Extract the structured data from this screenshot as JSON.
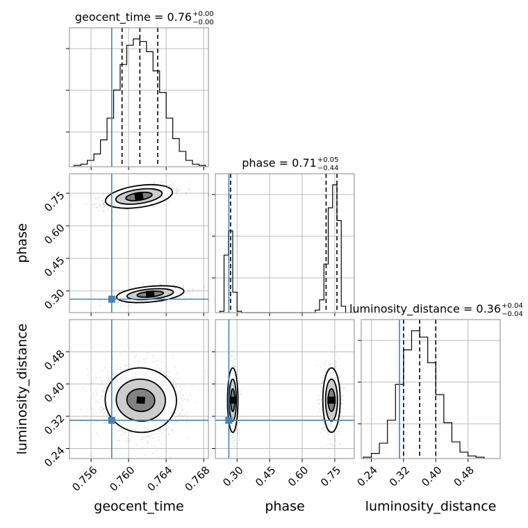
{
  "chart_data": {
    "type": "corner",
    "parameters": [
      "geocent_time",
      "phase",
      "luminosity_distance"
    ],
    "truth_color": "#4682b4",
    "truths": {
      "geocent_time": 0.7582,
      "phase": 0.262,
      "luminosity_distance": 0.31
    },
    "titles": [
      {
        "param": "geocent_time",
        "prefix": "geocent_time = 0.76",
        "upper": "+0.00",
        "lower": "−0.00"
      },
      {
        "param": "phase",
        "prefix": "phase = 0.71",
        "upper": "+0.05",
        "lower": "−0.44"
      },
      {
        "param": "luminosity_distance",
        "prefix": "luminosity_distance = 0.36",
        "upper": "+0.04",
        "lower": "−0.04"
      }
    ],
    "axes": {
      "geocent_time": {
        "range": [
          0.7537,
          0.7685
        ],
        "ticks": [
          0.756,
          0.76,
          0.764,
          0.768
        ],
        "tick_labels": [
          "0.756",
          "0.760",
          "0.764",
          "0.768"
        ]
      },
      "phase": {
        "range": [
          0.2,
          0.84
        ],
        "ticks": [
          0.3,
          0.45,
          0.6,
          0.75
        ],
        "tick_labels": [
          "0.30",
          "0.45",
          "0.60",
          "0.75"
        ]
      },
      "luminosity_distance": {
        "range": [
          0.215,
          0.56
        ],
        "ticks": [
          0.24,
          0.32,
          0.4,
          0.48
        ],
        "tick_labels": [
          "0.24",
          "0.32",
          "0.40",
          "0.48"
        ]
      }
    },
    "quantiles": {
      "geocent_time": [
        0.7593,
        0.7612,
        0.7631
      ],
      "phase": [
        0.27,
        0.71,
        0.76
      ],
      "luminosity_distance": [
        0.32,
        0.36,
        0.4
      ]
    },
    "histograms": {
      "geocent_time": {
        "edges": [
          0.7542,
          0.7549,
          0.7556,
          0.7563,
          0.757,
          0.7577,
          0.7584,
          0.7591,
          0.7598,
          0.7605,
          0.7612,
          0.7619,
          0.7626,
          0.7633,
          0.764,
          0.7647,
          0.7654,
          0.7661,
          0.7668,
          0.7675,
          0.7682
        ],
        "counts": [
          0.01,
          0.02,
          0.05,
          0.1,
          0.21,
          0.38,
          0.6,
          0.8,
          0.95,
          1.0,
          0.98,
          0.9,
          0.75,
          0.58,
          0.38,
          0.22,
          0.12,
          0.05,
          0.02,
          0.01
        ]
      },
      "phase": {
        "edges": [
          0.22,
          0.24,
          0.26,
          0.28,
          0.3,
          0.32,
          0.34,
          0.36,
          0.64,
          0.66,
          0.68,
          0.7,
          0.72,
          0.74,
          0.76,
          0.78,
          0.8
        ],
        "counts": [
          0.01,
          0.45,
          0.64,
          0.16,
          0.01,
          0,
          0,
          0,
          0,
          0.02,
          0.1,
          0.38,
          0.82,
          1.0,
          0.72,
          0.05
        ]
      },
      "luminosity_distance": {
        "edges": [
          0.22,
          0.24,
          0.26,
          0.28,
          0.3,
          0.32,
          0.34,
          0.36,
          0.38,
          0.4,
          0.42,
          0.44,
          0.46,
          0.48,
          0.5,
          0.52
        ],
        "counts": [
          0.01,
          0.04,
          0.12,
          0.3,
          0.58,
          0.85,
          1.0,
          0.95,
          0.75,
          0.5,
          0.28,
          0.13,
          0.05,
          0.02,
          0.01
        ]
      }
    },
    "blobs": {
      "phase_vs_geocent_time": [
        {
          "cx": 0.7611,
          "cy": 0.735,
          "sx": 0.0018,
          "sy": 0.025,
          "rho": 0.5,
          "w": 0.62
        },
        {
          "cx": 0.7623,
          "cy": 0.285,
          "sx": 0.0018,
          "sy": 0.018,
          "rho": 0.45,
          "w": 0.38
        }
      ],
      "luminosity_distance_vs_geocent_time": [
        {
          "cx": 0.7613,
          "cy": 0.36,
          "sx": 0.0019,
          "sy": 0.04,
          "rho": -0.1,
          "w": 1.0
        }
      ],
      "luminosity_distance_vs_phase": [
        {
          "cx": 0.28,
          "cy": 0.36,
          "sx": 0.012,
          "sy": 0.04,
          "rho": 0.0,
          "w": 0.42
        },
        {
          "cx": 0.735,
          "cy": 0.36,
          "sx": 0.02,
          "sy": 0.04,
          "rho": 0.0,
          "w": 0.58
        }
      ]
    }
  }
}
